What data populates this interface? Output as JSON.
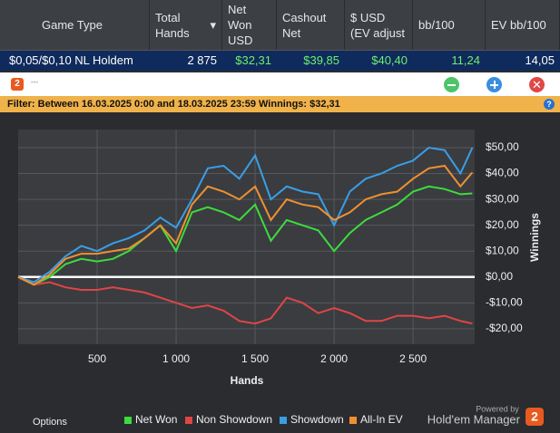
{
  "table": {
    "columns": [
      "Game Type",
      "Total Hands",
      "Net Won USD",
      "Cashout Net",
      "$ USD (EV adjust",
      "bb/100",
      "EV bb/100"
    ],
    "rows": [
      [
        "$0,05/$0,10 NL Holdem",
        "2 875",
        "$32,31",
        "$39,85",
        "$40,40",
        "11,24",
        "14,05"
      ]
    ]
  },
  "window": {
    "title": "---"
  },
  "filter": {
    "label": "Filter:",
    "text": "Between 16.03.2025 0:00 and 18.03.2025 23:59 Winnings: $32,31"
  },
  "footer": {
    "options": "Options",
    "powered_by": "Powered by",
    "brand": "Hold'em Manager",
    "logo": "2"
  },
  "chart_data": {
    "type": "line",
    "xlabel": "Hands",
    "ylabel": "Winnings",
    "x": [
      0,
      100,
      200,
      300,
      400,
      500,
      600,
      700,
      800,
      900,
      1000,
      1100,
      1200,
      1300,
      1400,
      1500,
      1600,
      1700,
      1800,
      1900,
      2000,
      2100,
      2200,
      2300,
      2400,
      2500,
      2600,
      2700,
      2800,
      2875
    ],
    "series": [
      {
        "name": "Net Won",
        "color": "#3ddc3d",
        "values": [
          0,
          -3,
          0,
          5,
          7,
          6,
          7,
          10,
          15,
          20,
          10,
          25,
          27,
          25,
          22,
          28,
          14,
          22,
          20,
          18,
          10,
          17,
          22,
          25,
          28,
          33,
          35,
          34,
          32,
          32.31
        ]
      },
      {
        "name": "Non Showdown",
        "color": "#e04545",
        "values": [
          0,
          -3,
          -2,
          -4,
          -5,
          -5,
          -4,
          -5,
          -6,
          -8,
          -10,
          -12,
          -11,
          -13,
          -17,
          -18,
          -16,
          -8,
          -10,
          -14,
          -12,
          -14,
          -17,
          -17,
          -15,
          -15,
          -16,
          -15,
          -17,
          -18
        ]
      },
      {
        "name": "Showdown",
        "color": "#3a9ee6",
        "values": [
          0,
          -2,
          2,
          8,
          12,
          10,
          13,
          15,
          18,
          23,
          19,
          30,
          42,
          43,
          38,
          47,
          30,
          35,
          33,
          32,
          20,
          33,
          38,
          40,
          43,
          45,
          50,
          49,
          40,
          50
        ]
      },
      {
        "name": "All-In EV",
        "color": "#f09030",
        "values": [
          0,
          -3,
          1,
          7,
          9,
          9,
          10,
          11,
          15,
          20,
          13,
          28,
          35,
          33,
          30,
          35,
          22,
          30,
          28,
          27,
          22,
          25,
          30,
          32,
          33,
          38,
          42,
          43,
          35,
          40.4
        ]
      }
    ],
    "xlim": [
      0,
      2890
    ],
    "ylim": [
      -26,
      57
    ],
    "xticks": [
      {
        "value": 500,
        "label": "500"
      },
      {
        "value": 1000,
        "label": "1 000"
      },
      {
        "value": 1500,
        "label": "1 500"
      },
      {
        "value": 2000,
        "label": "2 000"
      },
      {
        "value": 2500,
        "label": "2 500"
      }
    ],
    "yticks": [
      {
        "value": -20,
        "label": "-$20,00"
      },
      {
        "value": -10,
        "label": "-$10,00"
      },
      {
        "value": 0,
        "label": "$0,00"
      },
      {
        "value": 10,
        "label": "$10,00"
      },
      {
        "value": 20,
        "label": "$20,00"
      },
      {
        "value": 30,
        "label": "$30,00"
      },
      {
        "value": 40,
        "label": "$40,00"
      },
      {
        "value": 50,
        "label": "$50,00"
      }
    ],
    "grid": true,
    "zero_line": true
  }
}
